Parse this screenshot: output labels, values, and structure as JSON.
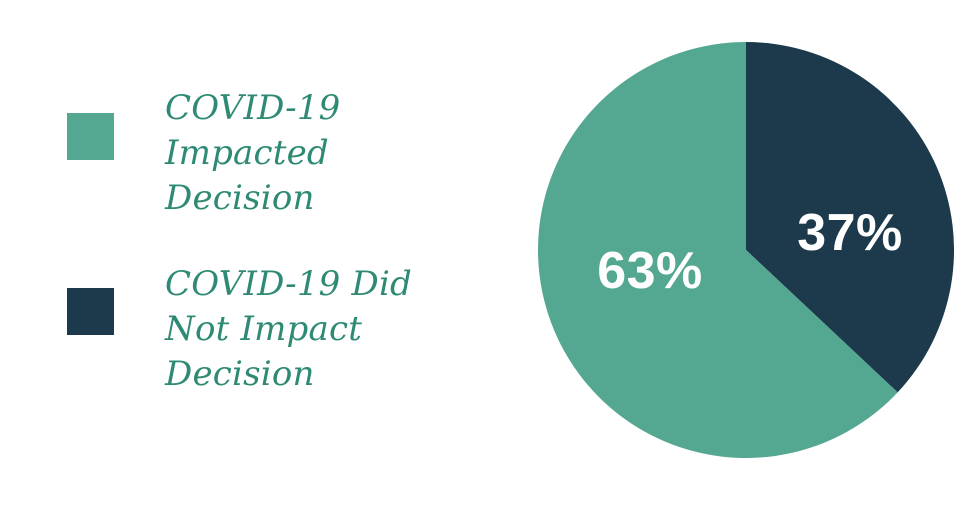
{
  "chart_data": {
    "type": "pie",
    "title": "",
    "slices": [
      {
        "label": "COVID-19 Impacted Decision",
        "value": 63,
        "percent_label": "63%",
        "color": "#54A892"
      },
      {
        "label": "COVID-19 Did Not Impact Decision",
        "value": 37,
        "percent_label": "37%",
        "color": "#1C3A4B"
      }
    ],
    "draw_order": [
      1,
      0
    ],
    "start_angle_deg": 0,
    "direction": "clockwise",
    "legend_position": "left",
    "background": "#FFFFFF",
    "percent_label_color": "#FFFFFF",
    "legend_text_color": "#2E8A74"
  },
  "legend": {
    "items": [
      {
        "display": "COVID-19\nImpacted\nDecision"
      },
      {
        "display": "COVID-19 Did\nNot Impact\nDecision"
      }
    ]
  }
}
